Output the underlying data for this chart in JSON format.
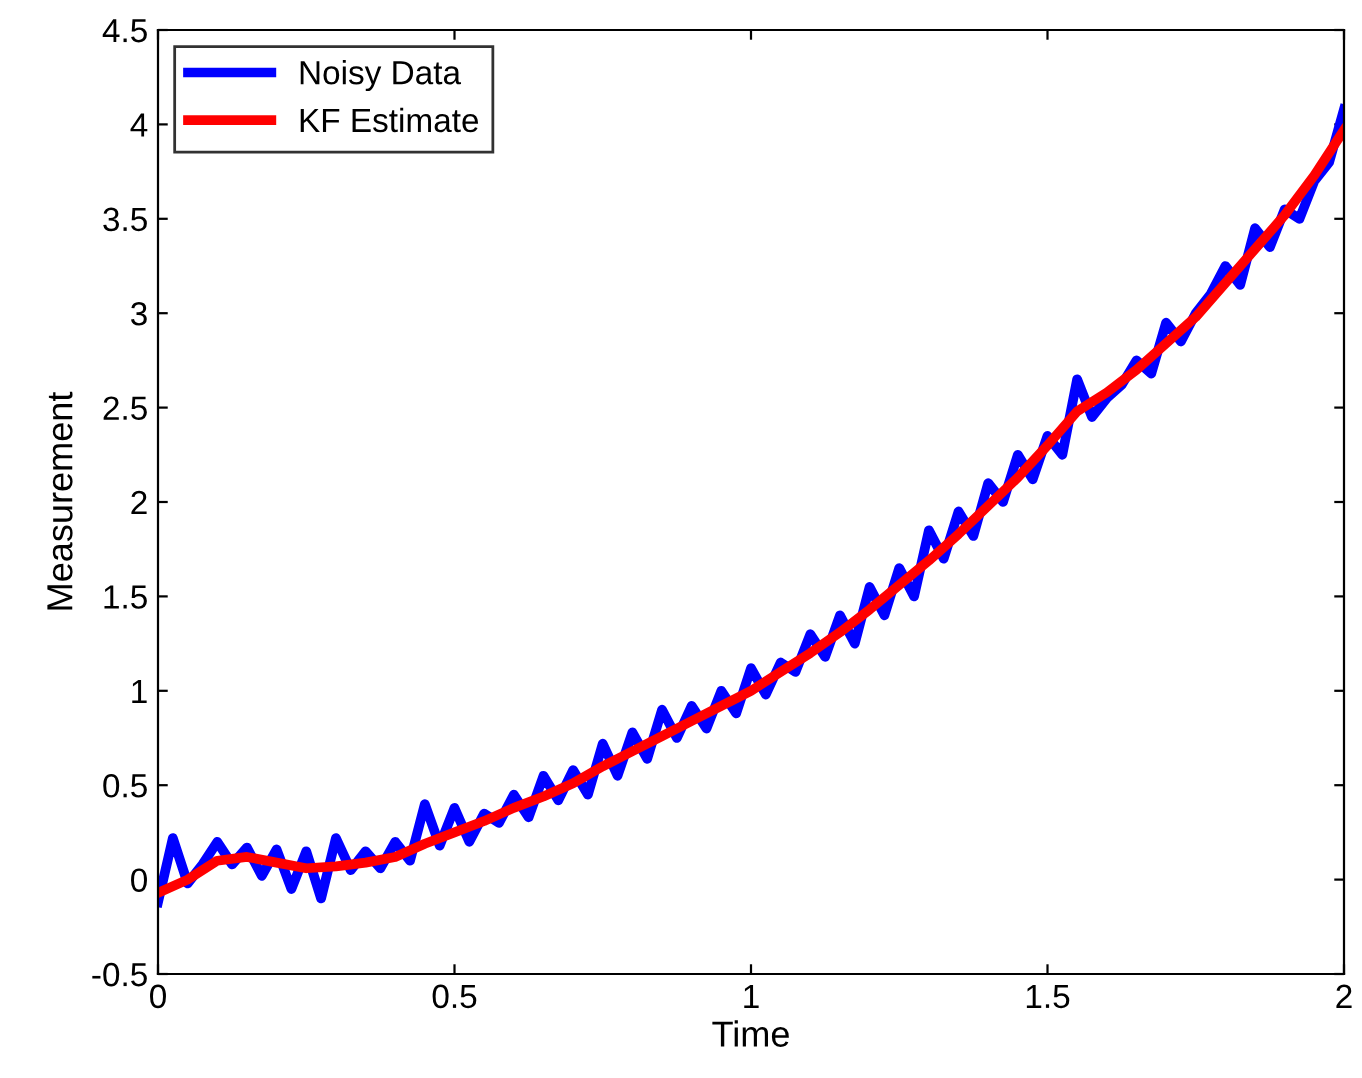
{
  "chart_data": {
    "type": "line",
    "xlabel": "Time",
    "ylabel": "Measurement",
    "xlim": [
      0,
      2
    ],
    "xticks": [
      0,
      0.5,
      1,
      1.5,
      2
    ],
    "ylim": [
      -0.5,
      4.5
    ],
    "yticks": [
      -0.5,
      0,
      0.5,
      1,
      1.5,
      2,
      2.5,
      3,
      3.5,
      4,
      4.5
    ],
    "grid": false,
    "legend": "top left",
    "marker": "none",
    "line_style": "solid",
    "series": [
      {
        "name": "Noisy Data",
        "color": "#0000ff",
        "x": [
          0,
          0.025,
          0.05,
          0.075,
          0.1,
          0.125,
          0.15,
          0.175,
          0.2,
          0.225,
          0.25,
          0.275,
          0.3,
          0.325,
          0.35,
          0.375,
          0.4,
          0.425,
          0.45,
          0.475,
          0.5,
          0.525,
          0.55,
          0.575,
          0.6,
          0.625,
          0.65,
          0.675,
          0.7,
          0.725,
          0.75,
          0.775,
          0.8,
          0.825,
          0.85,
          0.875,
          0.9,
          0.925,
          0.95,
          0.975,
          1.0,
          1.025,
          1.05,
          1.075,
          1.1,
          1.125,
          1.15,
          1.175,
          1.2,
          1.225,
          1.25,
          1.275,
          1.3,
          1.325,
          1.35,
          1.375,
          1.4,
          1.425,
          1.45,
          1.475,
          1.5,
          1.525,
          1.55,
          1.575,
          1.6,
          1.625,
          1.65,
          1.675,
          1.7,
          1.725,
          1.75,
          1.775,
          1.8,
          1.825,
          1.85,
          1.875,
          1.9,
          1.925,
          1.95,
          1.975,
          2.0
        ],
        "values": [
          -0.12,
          0.22,
          -0.02,
          0.08,
          0.2,
          0.08,
          0.17,
          0.02,
          0.16,
          -0.05,
          0.15,
          -0.1,
          0.22,
          0.05,
          0.15,
          0.06,
          0.2,
          0.1,
          0.4,
          0.18,
          0.38,
          0.2,
          0.35,
          0.3,
          0.45,
          0.33,
          0.55,
          0.42,
          0.58,
          0.45,
          0.72,
          0.55,
          0.78,
          0.64,
          0.9,
          0.75,
          0.92,
          0.8,
          1.0,
          0.88,
          1.12,
          0.98,
          1.15,
          1.1,
          1.3,
          1.18,
          1.4,
          1.25,
          1.55,
          1.4,
          1.65,
          1.5,
          1.85,
          1.7,
          1.95,
          1.82,
          2.1,
          2.0,
          2.25,
          2.12,
          2.35,
          2.25,
          2.65,
          2.45,
          2.55,
          2.62,
          2.75,
          2.68,
          2.95,
          2.85,
          3.0,
          3.1,
          3.25,
          3.15,
          3.45,
          3.35,
          3.55,
          3.5,
          3.7,
          3.8,
          4.08
        ]
      },
      {
        "name": "KF Estimate",
        "color": "#ff0000",
        "x": [
          0,
          0.05,
          0.1,
          0.15,
          0.2,
          0.25,
          0.3,
          0.35,
          0.4,
          0.45,
          0.5,
          0.55,
          0.6,
          0.65,
          0.7,
          0.75,
          0.8,
          0.85,
          0.9,
          0.95,
          1.0,
          1.05,
          1.1,
          1.15,
          1.2,
          1.25,
          1.3,
          1.35,
          1.4,
          1.45,
          1.5,
          1.55,
          1.6,
          1.65,
          1.7,
          1.75,
          1.8,
          1.85,
          1.9,
          1.95,
          2.0
        ],
        "values": [
          -0.07,
          0.0,
          0.1,
          0.12,
          0.09,
          0.06,
          0.07,
          0.09,
          0.12,
          0.19,
          0.25,
          0.31,
          0.38,
          0.44,
          0.51,
          0.6,
          0.68,
          0.76,
          0.84,
          0.92,
          1.0,
          1.1,
          1.2,
          1.31,
          1.43,
          1.56,
          1.69,
          1.83,
          1.98,
          2.13,
          2.3,
          2.48,
          2.58,
          2.7,
          2.84,
          2.98,
          3.16,
          3.34,
          3.52,
          3.73,
          3.97
        ]
      }
    ]
  }
}
